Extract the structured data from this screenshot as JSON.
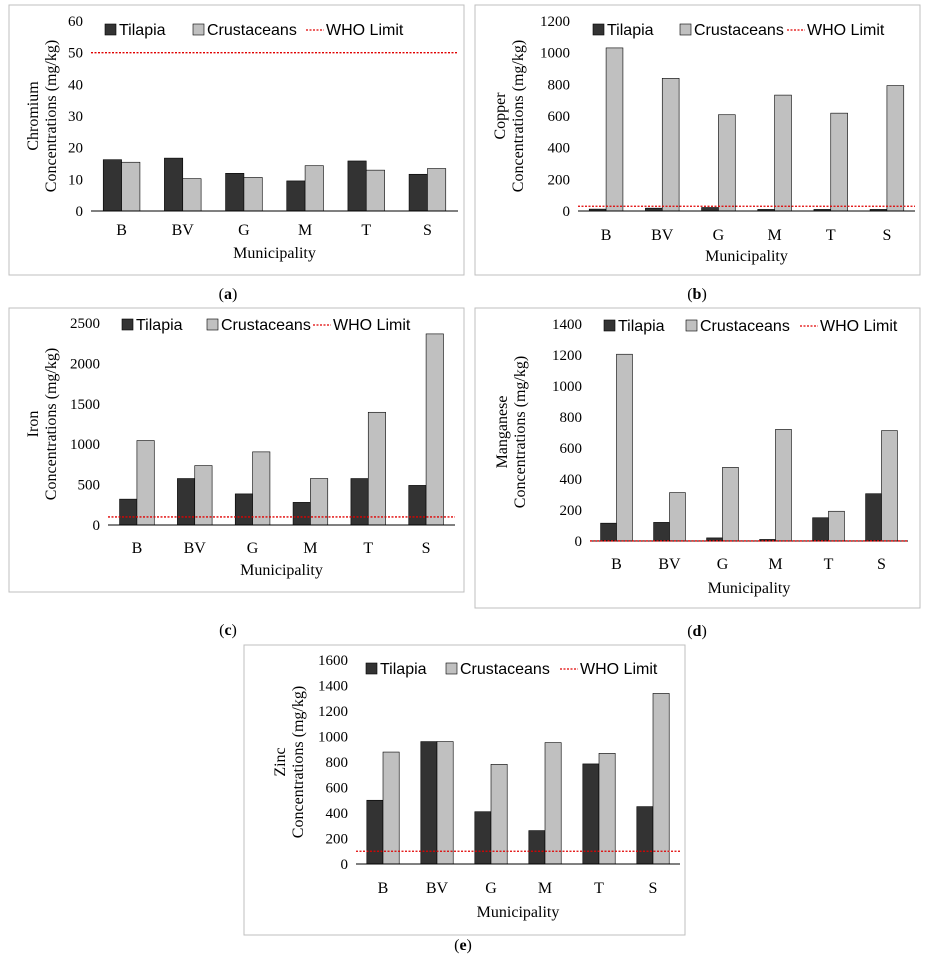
{
  "colors": {
    "tilapia": "#333333",
    "crustaceans": "#c0c0c0",
    "who_limit": "#e00000"
  },
  "chart_data": [
    {
      "id": "a",
      "type": "bar",
      "panel_label": "a",
      "ylabel_line1": "Chromium",
      "ylabel_line2": "Concentrations (mg/kg)",
      "xlabel": "Municipality",
      "categories": [
        "B",
        "BV",
        "G",
        "M",
        "T",
        "S"
      ],
      "ylim": [
        0,
        60
      ],
      "yticks": [
        0,
        10,
        20,
        30,
        40,
        50,
        60
      ],
      "series": [
        {
          "name": "Tilapia",
          "values": [
            16.2,
            16.7,
            11.9,
            9.5,
            15.8,
            11.6
          ]
        },
        {
          "name": "Crustaceans",
          "values": [
            15.4,
            10.2,
            10.6,
            14.3,
            12.9,
            13.4
          ]
        }
      ],
      "reference_line": {
        "name": "WHO Limit",
        "value": 50
      },
      "legend": [
        "Tilapia",
        "Crustaceans",
        "WHO Limit"
      ]
    },
    {
      "id": "b",
      "type": "bar",
      "panel_label": "b",
      "ylabel_line1": "Copper",
      "ylabel_line2": "Concentrations (mg/kg)",
      "xlabel": "Municipality",
      "categories": [
        "B",
        "BV",
        "G",
        "M",
        "T",
        "S"
      ],
      "ylim": [
        0,
        1200
      ],
      "yticks": [
        0,
        200,
        400,
        600,
        800,
        1000,
        1200
      ],
      "series": [
        {
          "name": "Tilapia",
          "values": [
            12,
            18,
            22,
            10,
            10,
            10
          ]
        },
        {
          "name": "Crustaceans",
          "values": [
            1030,
            838,
            608,
            732,
            618,
            792
          ]
        }
      ],
      "reference_line": {
        "name": "WHO Limit",
        "value": 30
      },
      "legend": [
        "Tilapia",
        "Crustaceans",
        "WHO Limit"
      ]
    },
    {
      "id": "c",
      "type": "bar",
      "panel_label": "c",
      "ylabel_line1": "Iron",
      "ylabel_line2": "Concentrations (mg/kg)",
      "xlabel": "Municipality",
      "categories": [
        "B",
        "BV",
        "G",
        "M",
        "T",
        "S"
      ],
      "ylim": [
        0,
        2500
      ],
      "yticks": [
        0,
        500,
        1000,
        1500,
        2000,
        2500
      ],
      "series": [
        {
          "name": "Tilapia",
          "values": [
            320,
            575,
            385,
            280,
            575,
            490
          ]
        },
        {
          "name": "Crustaceans",
          "values": [
            1045,
            735,
            905,
            575,
            1395,
            2365
          ]
        }
      ],
      "reference_line": {
        "name": "WHO Limit",
        "value": 100
      },
      "legend": [
        "Tilapia",
        "Crustaceans",
        "WHO Limit"
      ]
    },
    {
      "id": "d",
      "type": "bar",
      "panel_label": "d",
      "ylabel_line1": "Manganese",
      "ylabel_line2": "Concentrations (mg/kg)",
      "xlabel": "Municipality",
      "categories": [
        "B",
        "BV",
        "G",
        "M",
        "T",
        "S"
      ],
      "ylim": [
        0,
        1400
      ],
      "yticks": [
        0,
        200,
        400,
        600,
        800,
        1000,
        1200,
        1400
      ],
      "series": [
        {
          "name": "Tilapia",
          "values": [
            115,
            120,
            20,
            10,
            150,
            305
          ]
        },
        {
          "name": "Crustaceans",
          "values": [
            1205,
            312,
            475,
            720,
            192,
            712
          ]
        }
      ],
      "reference_line": {
        "name": "WHO Limit",
        "value": 0.5
      },
      "legend": [
        "Tilapia",
        "Crustaceans",
        "WHO Limit"
      ]
    },
    {
      "id": "e",
      "type": "bar",
      "panel_label": "e",
      "ylabel_line1": "Zinc",
      "ylabel_line2": "Concentrations (mg/kg)",
      "xlabel": "Municipality",
      "categories": [
        "B",
        "BV",
        "G",
        "M",
        "T",
        "S"
      ],
      "ylim": [
        0,
        1600
      ],
      "yticks": [
        0,
        200,
        400,
        600,
        800,
        1000,
        1200,
        1400,
        1600
      ],
      "series": [
        {
          "name": "Tilapia",
          "values": [
            500,
            960,
            410,
            262,
            785,
            450
          ]
        },
        {
          "name": "Crustaceans",
          "values": [
            878,
            960,
            782,
            952,
            868,
            1338
          ]
        }
      ],
      "reference_line": {
        "name": "WHO Limit",
        "value": 100
      },
      "legend": [
        "Tilapia",
        "Crustaceans",
        "WHO Limit"
      ]
    }
  ]
}
